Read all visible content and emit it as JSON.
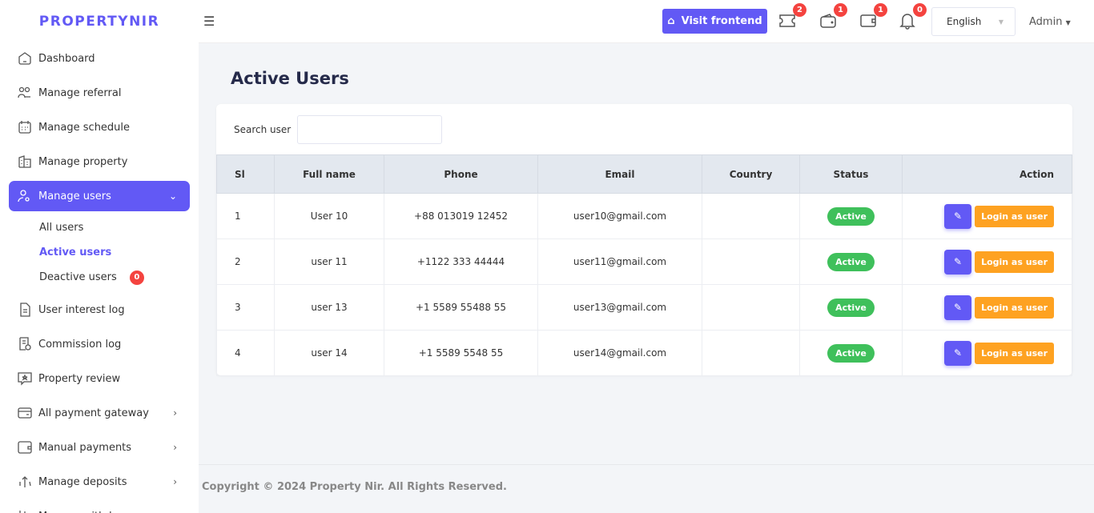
{
  "brand": "PROPERTYNIR",
  "sidebar": {
    "items": [
      {
        "label": "Dashboard",
        "icon": "home-icon"
      },
      {
        "label": "Manage referral",
        "icon": "users-icon"
      },
      {
        "label": "Manage schedule",
        "icon": "calendar-icon"
      },
      {
        "label": "Manage property",
        "icon": "building-icon"
      },
      {
        "label": "Manage users",
        "icon": "user-gear-icon",
        "active": true,
        "expanded": true
      },
      {
        "label": "User interest log",
        "icon": "document-icon"
      },
      {
        "label": "Commission log",
        "icon": "receipt-icon"
      },
      {
        "label": "Property review",
        "icon": "star-message-icon"
      },
      {
        "label": "All payment gateway",
        "icon": "card-icon"
      },
      {
        "label": "Manual payments",
        "icon": "wallet-icon"
      },
      {
        "label": "Manage deposits",
        "icon": "deposit-icon"
      },
      {
        "label": "Manage withdraw",
        "icon": "withdraw-icon"
      }
    ],
    "subitems": [
      {
        "label": "All users"
      },
      {
        "label": "Active users",
        "active": true
      },
      {
        "label": "Deactive users",
        "badge": "0"
      }
    ]
  },
  "topbar": {
    "visit_label": "Visit frontend",
    "badges": {
      "ticket": "2",
      "wallet": "1",
      "payment": "1",
      "notifications": "0"
    },
    "language": "English",
    "user": "Admin"
  },
  "page": {
    "title": "Active Users",
    "search_label": "Search user",
    "search_value": "",
    "search_placeholder": ""
  },
  "table": {
    "columns": [
      "Sl",
      "Full name",
      "Phone",
      "Email",
      "Country",
      "Status",
      "Action"
    ],
    "rows": [
      {
        "sl": "1",
        "name": "User 10",
        "phone": "+88 013019 12452",
        "email": "user10@gmail.com",
        "country": "",
        "status": "Active"
      },
      {
        "sl": "2",
        "name": "user 11",
        "phone": "+1122 333 44444",
        "email": "user11@gmail.com",
        "country": "",
        "status": "Active"
      },
      {
        "sl": "3",
        "name": "user 13",
        "phone": "+1 5589 55488 55",
        "email": "user13@gmail.com",
        "country": "",
        "status": "Active"
      },
      {
        "sl": "4",
        "name": "user 14",
        "phone": "+1 5589 5548 55",
        "email": "user14@gmail.com",
        "country": "",
        "status": "Active"
      }
    ],
    "login_label": "Login as user"
  },
  "footer": "Copyright © 2024 Property Nir. All Rights Reserved.",
  "colors": {
    "accent": "#6259f5",
    "success": "#3fc05b",
    "warning": "#fea221",
    "danger": "#f4433f"
  }
}
